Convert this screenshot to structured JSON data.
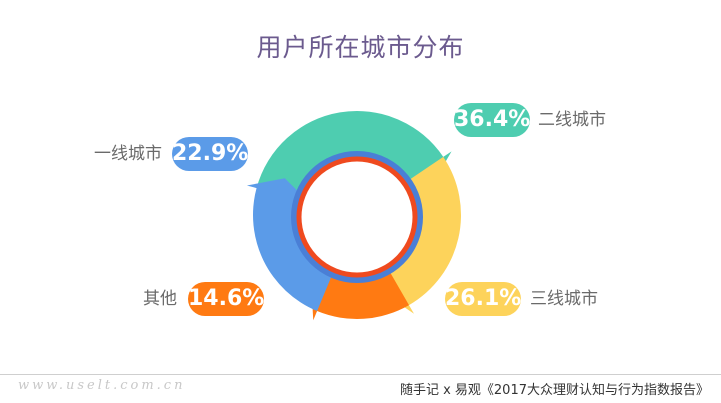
{
  "title": "用户所在城市分布",
  "chart_data": {
    "type": "pie",
    "title": "用户所在城市分布",
    "categories": [
      "二线城市",
      "三线城市",
      "其他",
      "一线城市"
    ],
    "values": [
      36.4,
      26.1,
      14.6,
      22.9
    ],
    "labels": [
      "36.4%",
      "26.1%",
      "14.6%",
      "22.9%"
    ],
    "colors": [
      "#4ecdb0",
      "#fdd35b",
      "#ff7a12",
      "#5b9be8"
    ]
  },
  "footer": {
    "watermark": "www.uselt.com.cn",
    "source": "随手记 x 易观《2017大众理财认知与行为指数报告》"
  }
}
